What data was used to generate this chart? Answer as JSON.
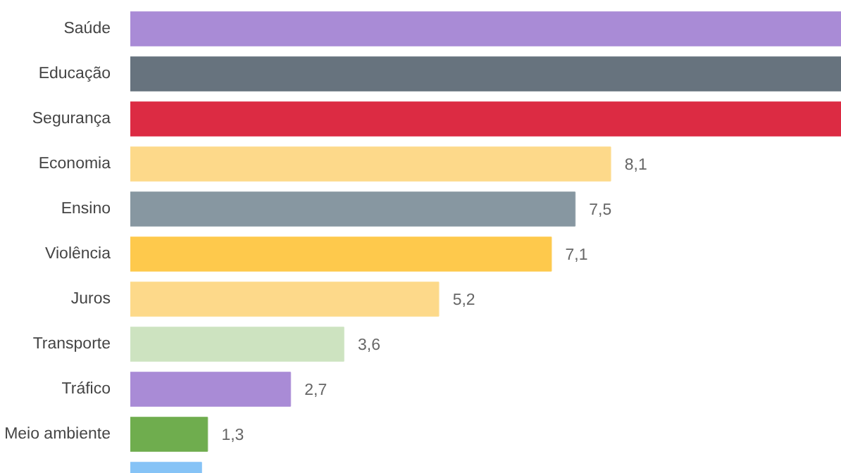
{
  "chart_data": {
    "type": "bar",
    "orientation": "horizontal",
    "categories": [
      "Saúde",
      "Educação",
      "Segurança",
      "Economia",
      "Ensino",
      "Violência",
      "Juros",
      "Transporte",
      "Tráfico",
      "Meio ambiente",
      null
    ],
    "values": [
      12,
      12,
      12,
      8.1,
      7.5,
      7.1,
      5.2,
      3.6,
      2.7,
      1.3,
      1.2
    ],
    "colors": [
      "#a98bd6",
      "#67737e",
      "#dc2b43",
      "#fdd98a",
      "#8797a1",
      "#fec94c",
      "#fdd98a",
      "#cde3c0",
      "#a98bd6",
      "#6fad4e",
      "#86c3f6"
    ],
    "value_labels": [
      null,
      null,
      null,
      "8,1",
      "7,5",
      "7,1",
      "5,2",
      "3,6",
      "2,7",
      "1,3",
      null
    ],
    "xlim": [
      0,
      12
    ]
  }
}
